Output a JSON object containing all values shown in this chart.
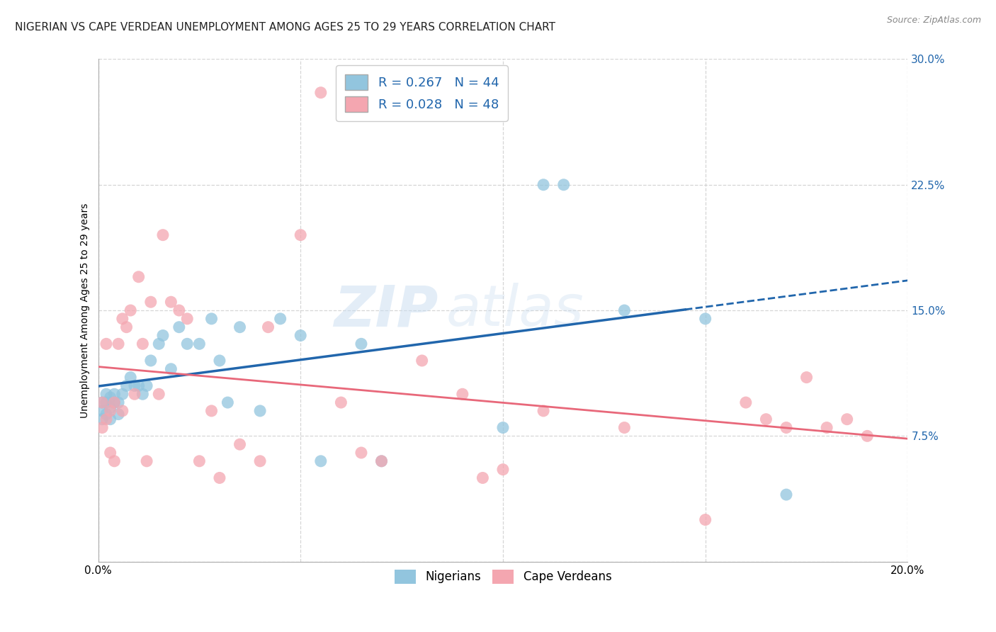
{
  "title": "NIGERIAN VS CAPE VERDEAN UNEMPLOYMENT AMONG AGES 25 TO 29 YEARS CORRELATION CHART",
  "source": "Source: ZipAtlas.com",
  "ylabel": "Unemployment Among Ages 25 to 29 years",
  "xmin": 0.0,
  "xmax": 0.2,
  "ymin": 0.0,
  "ymax": 0.3,
  "yticks": [
    0.0,
    0.075,
    0.15,
    0.225,
    0.3
  ],
  "ytick_labels": [
    "",
    "7.5%",
    "15.0%",
    "22.5%",
    "30.0%"
  ],
  "xticks": [
    0.0,
    0.05,
    0.1,
    0.15,
    0.2
  ],
  "xtick_labels": [
    "0.0%",
    "",
    "",
    "",
    "20.0%"
  ],
  "nigerian_color": "#92c5de",
  "capeverdean_color": "#f4a6b0",
  "nigerian_line_color": "#2166ac",
  "capeverdean_line_color": "#e8687a",
  "background_color": "#ffffff",
  "watermark_zip": "ZIP",
  "watermark_atlas": "atlas",
  "nigerian_x": [
    0.001,
    0.001,
    0.001,
    0.002,
    0.002,
    0.002,
    0.003,
    0.003,
    0.003,
    0.004,
    0.004,
    0.005,
    0.005,
    0.006,
    0.007,
    0.008,
    0.009,
    0.01,
    0.011,
    0.012,
    0.013,
    0.015,
    0.016,
    0.018,
    0.02,
    0.022,
    0.025,
    0.028,
    0.03,
    0.032,
    0.035,
    0.04,
    0.045,
    0.05,
    0.055,
    0.065,
    0.07,
    0.08,
    0.1,
    0.11,
    0.115,
    0.13,
    0.15,
    0.17
  ],
  "nigerian_y": [
    0.09,
    0.095,
    0.085,
    0.095,
    0.088,
    0.1,
    0.092,
    0.098,
    0.085,
    0.1,
    0.095,
    0.088,
    0.095,
    0.1,
    0.105,
    0.11,
    0.105,
    0.105,
    0.1,
    0.105,
    0.12,
    0.13,
    0.135,
    0.115,
    0.14,
    0.13,
    0.13,
    0.145,
    0.12,
    0.095,
    0.14,
    0.09,
    0.145,
    0.135,
    0.06,
    0.13,
    0.06,
    0.27,
    0.08,
    0.225,
    0.225,
    0.15,
    0.145,
    0.04
  ],
  "capeverdean_x": [
    0.001,
    0.001,
    0.002,
    0.002,
    0.003,
    0.003,
    0.004,
    0.004,
    0.005,
    0.006,
    0.006,
    0.007,
    0.008,
    0.009,
    0.01,
    0.011,
    0.012,
    0.013,
    0.015,
    0.016,
    0.018,
    0.02,
    0.022,
    0.025,
    0.028,
    0.03,
    0.035,
    0.04,
    0.042,
    0.05,
    0.055,
    0.06,
    0.065,
    0.07,
    0.08,
    0.09,
    0.095,
    0.1,
    0.11,
    0.13,
    0.15,
    0.16,
    0.165,
    0.17,
    0.175,
    0.18,
    0.185,
    0.19
  ],
  "capeverdean_y": [
    0.08,
    0.095,
    0.085,
    0.13,
    0.09,
    0.065,
    0.095,
    0.06,
    0.13,
    0.09,
    0.145,
    0.14,
    0.15,
    0.1,
    0.17,
    0.13,
    0.06,
    0.155,
    0.1,
    0.195,
    0.155,
    0.15,
    0.145,
    0.06,
    0.09,
    0.05,
    0.07,
    0.06,
    0.14,
    0.195,
    0.28,
    0.095,
    0.065,
    0.06,
    0.12,
    0.1,
    0.05,
    0.055,
    0.09,
    0.08,
    0.025,
    0.095,
    0.085,
    0.08,
    0.11,
    0.08,
    0.085,
    0.075
  ],
  "title_fontsize": 11,
  "axis_label_fontsize": 10,
  "tick_fontsize": 11
}
